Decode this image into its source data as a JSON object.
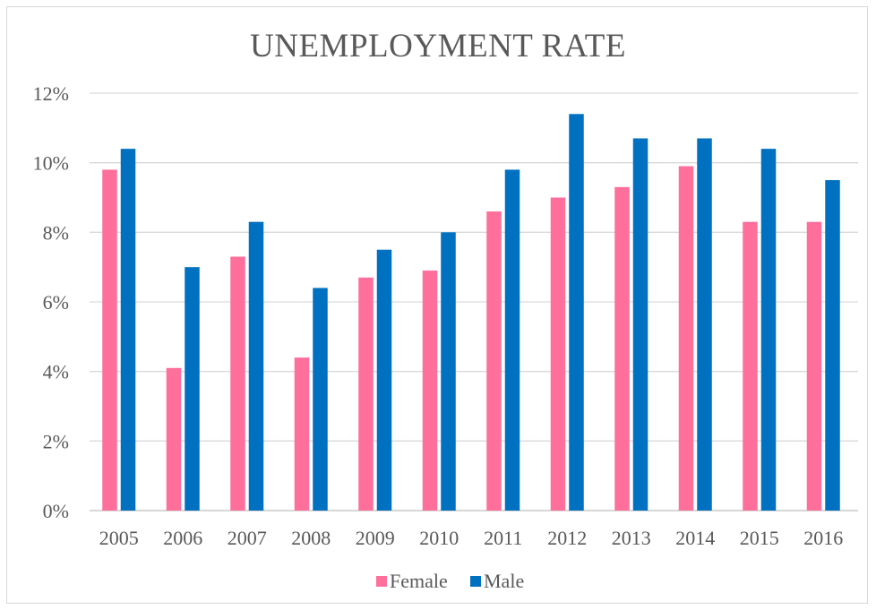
{
  "chart_data": {
    "type": "bar",
    "title": "UNEMPLOYMENT RATE",
    "xlabel": "",
    "ylabel": "",
    "categories": [
      "2005",
      "2006",
      "2007",
      "2008",
      "2009",
      "2010",
      "2011",
      "2012",
      "2013",
      "2014",
      "2015",
      "2016"
    ],
    "series": [
      {
        "name": "Female",
        "color": "#ff6f9c",
        "values": [
          9.8,
          4.1,
          7.3,
          4.4,
          6.7,
          6.9,
          8.6,
          9.0,
          9.3,
          9.9,
          8.3,
          8.3
        ]
      },
      {
        "name": "Male",
        "color": "#0070c0",
        "values": [
          10.4,
          7.0,
          8.3,
          6.4,
          7.5,
          8.0,
          9.8,
          11.4,
          10.7,
          10.7,
          10.4,
          9.5
        ]
      }
    ],
    "ylim": [
      0,
      12
    ],
    "yticks": [
      "0%",
      "2%",
      "4%",
      "6%",
      "8%",
      "10%",
      "12%"
    ],
    "grid": true,
    "legend_position": "bottom"
  }
}
